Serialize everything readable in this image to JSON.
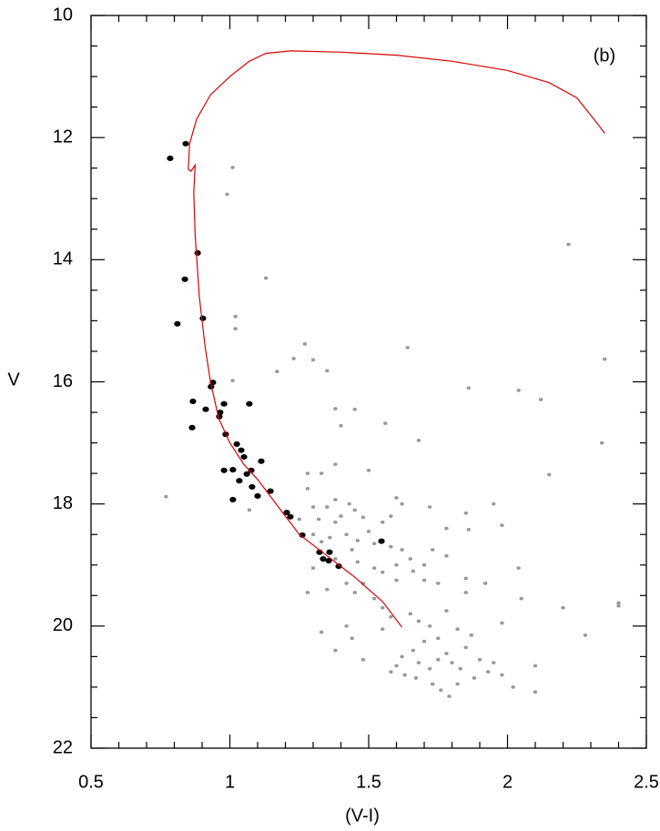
{
  "chart_data": {
    "type": "scatter",
    "xlabel": "(V-I)",
    "ylabel": "V",
    "annotation": "(b)",
    "xlim": [
      0.5,
      2.5
    ],
    "ylim": [
      22,
      10
    ],
    "xticks": [
      0.5,
      1,
      1.5,
      2,
      2.5
    ],
    "yticks": [
      10,
      12,
      14,
      16,
      18,
      20,
      22
    ],
    "xminorticks": [
      0.6,
      0.7,
      0.8,
      0.9,
      1.1,
      1.2,
      1.3,
      1.4,
      1.6,
      1.7,
      1.8,
      1.9,
      2.1,
      2.2,
      2.3,
      2.4
    ],
    "yminorticks": [
      10.5,
      11,
      11.5,
      12.5,
      13,
      13.5,
      14.5,
      15,
      15.5,
      16.5,
      17,
      17.5,
      18.5,
      19,
      19.5,
      20.5,
      21,
      21.5
    ],
    "series": [
      {
        "mode": "markers",
        "color": "#999999",
        "marker_size": 2.2,
        "x": [
          1.01,
          0.99,
          1.13,
          1.02,
          1.02,
          1.27,
          1.23,
          1.3,
          1.35,
          1.17,
          1.01,
          1.38,
          1.4,
          1.28,
          1.33,
          1.5,
          1.38,
          1.28,
          1.6,
          1.38,
          1.43,
          1.35,
          1.3,
          1.45,
          1.48,
          1.4,
          1.32,
          1.38,
          1.25,
          1.55,
          1.5,
          1.42,
          1.3,
          1.36,
          1.33,
          1.46,
          1.52,
          1.58,
          1.62,
          1.44,
          1.38,
          1.46,
          1.52,
          1.55,
          1.6,
          1.65,
          1.7,
          1.73,
          1.78,
          1.66,
          1.7,
          1.75,
          1.6,
          1.48,
          1.42,
          1.35,
          1.45,
          1.52,
          1.55,
          1.58,
          1.65,
          1.68,
          1.72,
          1.78,
          1.82,
          1.75,
          1.7,
          1.66,
          1.62,
          1.6,
          1.58,
          1.63,
          1.68,
          1.72,
          1.75,
          1.78,
          1.8,
          1.83,
          1.85,
          1.87,
          1.9,
          1.93,
          1.95,
          1.88,
          1.82,
          1.76,
          1.79,
          1.73,
          1.67,
          1.98,
          2.02,
          2.1,
          2.1,
          1.85,
          1.85,
          1.92,
          1.98,
          1.55,
          1.44,
          1.33,
          1.42,
          1.48,
          1.38,
          1.28,
          1.3,
          1.98,
          1.95,
          1.85,
          1.78,
          1.72,
          1.62,
          1.58,
          1.86,
          2.05,
          2.04,
          2.2,
          2.28,
          2.4,
          2.4,
          2.22,
          2.35,
          2.34,
          2.12,
          2.04,
          1.86,
          1.64,
          1.68,
          2.15,
          0.77,
          1.07,
          1.45,
          1.56
        ],
        "values": [
          12.49,
          12.93,
          14.3,
          14.93,
          15.13,
          15.38,
          15.62,
          15.64,
          15.82,
          15.83,
          15.98,
          16.44,
          16.72,
          17.5,
          17.5,
          17.45,
          17.35,
          17.75,
          17.9,
          17.93,
          18.0,
          18.05,
          18.05,
          18.1,
          18.22,
          18.2,
          18.25,
          18.3,
          18.25,
          18.3,
          18.45,
          18.5,
          18.5,
          18.55,
          18.62,
          18.6,
          18.65,
          18.7,
          18.75,
          18.75,
          18.9,
          18.95,
          19.05,
          19.12,
          19.0,
          18.9,
          19.0,
          18.75,
          18.85,
          19.1,
          19.25,
          19.3,
          19.25,
          19.3,
          19.3,
          19.4,
          19.45,
          19.55,
          19.7,
          19.85,
          19.8,
          19.92,
          20.0,
          19.75,
          20.05,
          20.2,
          20.25,
          20.4,
          20.5,
          20.65,
          20.75,
          20.8,
          20.6,
          20.7,
          20.55,
          20.45,
          20.6,
          20.7,
          20.35,
          20.15,
          20.55,
          20.75,
          20.6,
          20.85,
          20.95,
          21.05,
          21.15,
          20.95,
          20.85,
          20.8,
          21.0,
          21.08,
          20.65,
          19.22,
          19.45,
          19.3,
          19.95,
          20.05,
          20.2,
          20.1,
          20.0,
          20.55,
          20.4,
          19.45,
          19.05,
          18.35,
          18.0,
          18.15,
          18.4,
          18.05,
          18.0,
          18.2,
          18.42,
          19.55,
          19.05,
          19.7,
          20.15,
          19.62,
          19.67,
          13.75,
          15.63,
          17.0,
          16.29,
          16.14,
          16.1,
          15.44,
          16.96,
          17.52,
          17.88,
          18.1,
          16.45,
          16.68
        ]
      },
      {
        "mode": "markers",
        "color": "#000000",
        "marker_size": 3.6,
        "x": [
          0.785,
          0.841,
          0.884,
          0.838,
          0.903,
          0.811,
          0.939,
          0.932,
          0.979,
          0.867,
          0.913,
          0.962,
          0.965,
          1.07,
          0.864,
          0.985,
          1.025,
          1.041,
          1.051,
          1.113,
          1.077,
          1.061,
          0.979,
          1.011,
          1.08,
          1.034,
          1.1,
          1.146,
          1.011,
          1.205,
          1.218,
          1.261,
          1.546,
          1.323,
          1.359,
          1.336,
          1.356,
          1.392
        ],
        "values": [
          12.34,
          12.1,
          13.89,
          14.32,
          14.96,
          15.05,
          16.01,
          16.08,
          16.36,
          16.32,
          16.45,
          16.57,
          16.5,
          16.36,
          16.75,
          16.86,
          17.02,
          17.12,
          17.23,
          17.3,
          17.45,
          17.51,
          17.45,
          17.44,
          17.72,
          17.62,
          17.87,
          17.79,
          17.93,
          18.14,
          18.21,
          18.51,
          18.61,
          18.79,
          18.79,
          18.9,
          18.93,
          19.02
        ]
      },
      {
        "mode": "line",
        "color": "#dd0000",
        "x": [
          1.62,
          1.55,
          1.45,
          1.35,
          1.25,
          1.2,
          1.15,
          1.1,
          1.05,
          1.0,
          0.96,
          0.93,
          0.91,
          0.89,
          0.875,
          0.87,
          0.875,
          0.86,
          0.85,
          0.855,
          0.88,
          0.93,
          1.0,
          1.07,
          1.13,
          1.22,
          1.4,
          1.6,
          1.8,
          2.0,
          2.15,
          2.25,
          2.32,
          2.35
        ],
        "values": [
          20.02,
          19.6,
          19.2,
          18.85,
          18.5,
          18.2,
          17.9,
          17.6,
          17.35,
          17.0,
          16.6,
          16.0,
          15.4,
          14.6,
          13.6,
          12.9,
          12.45,
          12.55,
          12.52,
          12.1,
          11.7,
          11.3,
          11.0,
          10.75,
          10.62,
          10.58,
          10.6,
          10.65,
          10.75,
          10.9,
          11.1,
          11.35,
          11.75,
          11.93
        ]
      }
    ]
  }
}
